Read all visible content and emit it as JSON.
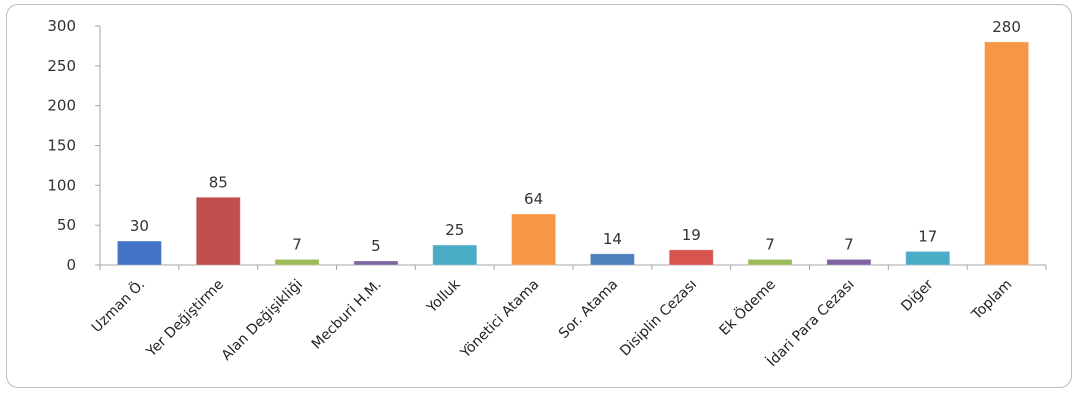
{
  "chart_data": {
    "type": "bar",
    "categories": [
      "Uzman Ö.",
      "Yer Değiştirme",
      "Alan Değişikliği",
      "Mecburi H.M.",
      "Yolluk",
      "Yönetici Atama",
      "Sor. Atama",
      "Disiplin Cezası",
      "Ek Ödeme",
      "İdari Para Cezası",
      "Diğer",
      "Toplam"
    ],
    "values": [
      30,
      85,
      7,
      5,
      25,
      64,
      14,
      19,
      7,
      7,
      17,
      280
    ],
    "data_labels": [
      "30",
      "85",
      "7",
      "5",
      "25",
      "64",
      "14",
      "19",
      "7",
      "7",
      "17",
      "280"
    ],
    "colors": [
      "#4472C4",
      "#C0504D",
      "#9BBB59",
      "#8064A2",
      "#4BACC6",
      "#F79646",
      "#4F81BD",
      "#D9534F",
      "#9BBB59",
      "#8064A2",
      "#4BACC6",
      "#F79646"
    ],
    "yticks": [
      "0",
      "50",
      "100",
      "150",
      "200",
      "250",
      "300"
    ],
    "ylim": [
      0,
      300
    ],
    "grid": false,
    "legend": false,
    "title": "",
    "xlabel": "",
    "ylabel": ""
  }
}
